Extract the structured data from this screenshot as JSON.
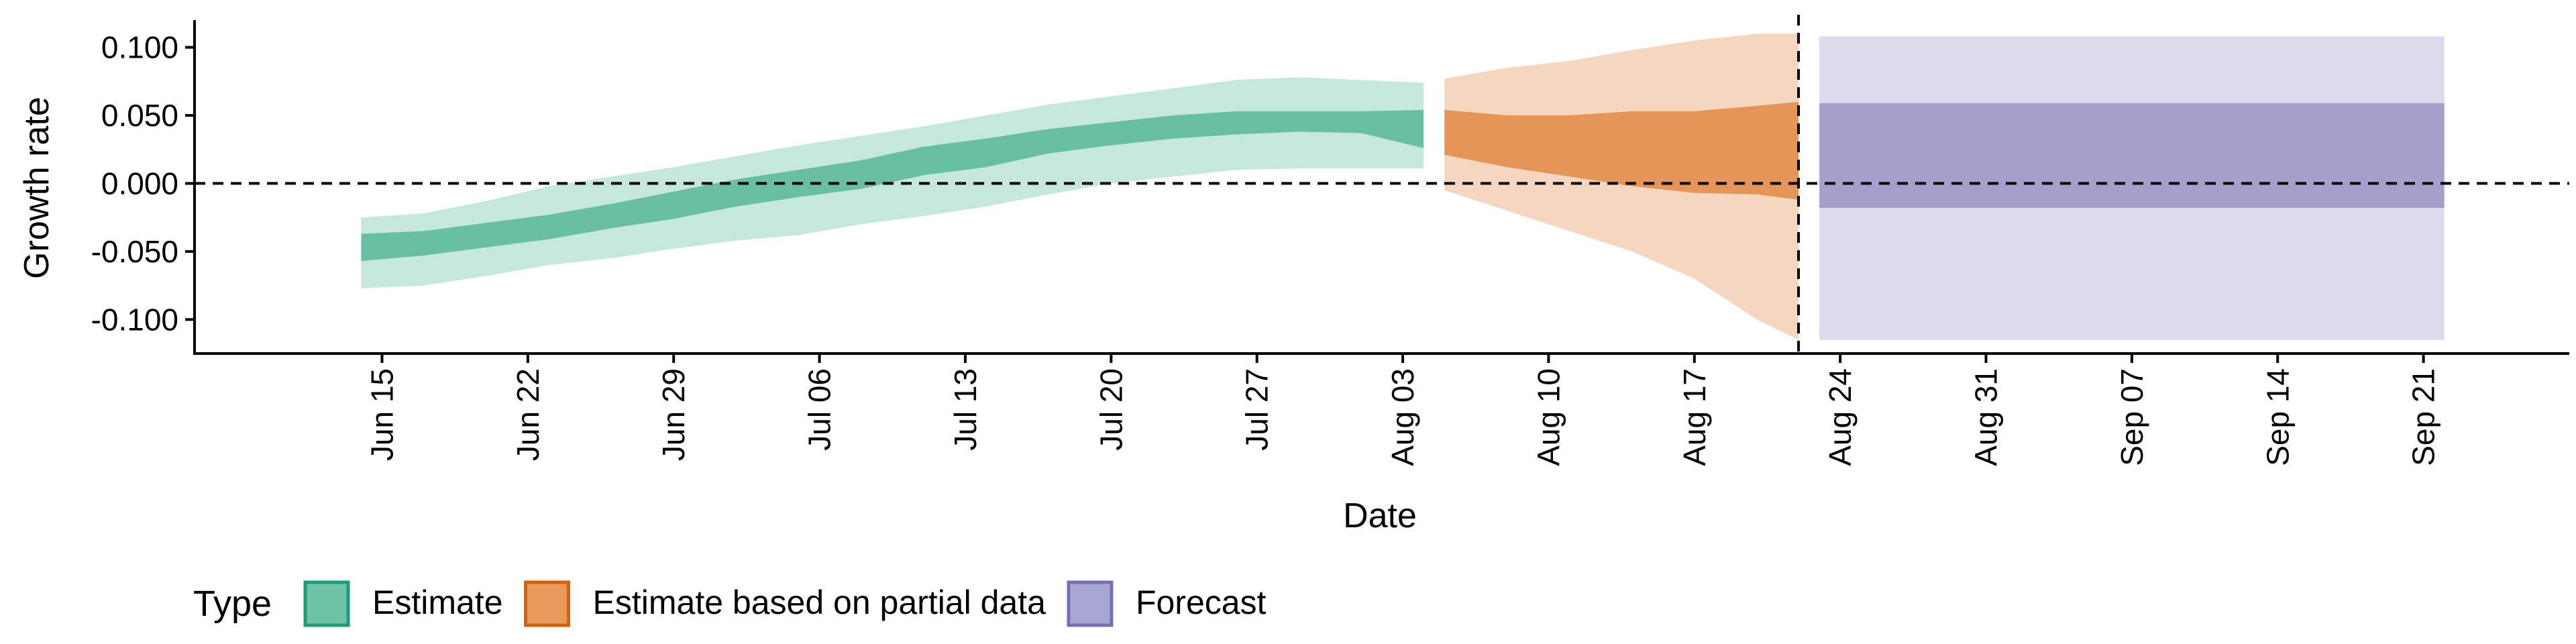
{
  "chart_data": {
    "type": "area",
    "title": "",
    "xlabel": "Date",
    "ylabel": "Growth rate",
    "ylim": [
      -0.125,
      0.12
    ],
    "xlim": [
      "2020-06-06",
      "2020-09-28"
    ],
    "x_ticks": [
      {
        "date": "2020-06-15",
        "label": "Jun 15"
      },
      {
        "date": "2020-06-22",
        "label": "Jun 22"
      },
      {
        "date": "2020-06-29",
        "label": "Jun 29"
      },
      {
        "date": "2020-07-06",
        "label": "Jul 06"
      },
      {
        "date": "2020-07-13",
        "label": "Jul 13"
      },
      {
        "date": "2020-07-20",
        "label": "Jul 20"
      },
      {
        "date": "2020-07-27",
        "label": "Jul 27"
      },
      {
        "date": "2020-08-03",
        "label": "Aug 03"
      },
      {
        "date": "2020-08-10",
        "label": "Aug 10"
      },
      {
        "date": "2020-08-17",
        "label": "Aug 17"
      },
      {
        "date": "2020-08-24",
        "label": "Aug 24"
      },
      {
        "date": "2020-08-31",
        "label": "Aug 31"
      },
      {
        "date": "2020-09-07",
        "label": "Sep 07"
      },
      {
        "date": "2020-09-14",
        "label": "Sep 14"
      },
      {
        "date": "2020-09-21",
        "label": "Sep 21"
      }
    ],
    "y_ticks": [
      {
        "value": 0.1,
        "label": "0.100"
      },
      {
        "value": 0.05,
        "label": "0.050"
      },
      {
        "value": 0.0,
        "label": "0.000"
      },
      {
        "value": -0.05,
        "label": "-0.050"
      },
      {
        "value": -0.1,
        "label": "-0.100"
      }
    ],
    "hline_y": 0,
    "vline_x": "2020-08-22",
    "grid": false,
    "legend": {
      "title": "Type",
      "position": "bottom-left",
      "entries": [
        {
          "label": "Estimate",
          "fill": "#6ec2a5",
          "stroke": "#1b9e77"
        },
        {
          "label": "Estimate based on partial data",
          "fill": "#e89a5e",
          "stroke": "#d95f02"
        },
        {
          "label": "Forecast",
          "fill": "#a8a6d3",
          "stroke": "#7570b3"
        }
      ]
    },
    "series": [
      {
        "type": "Estimate",
        "color": "#1b9e77",
        "x": [
          "2020-06-14",
          "2020-06-17",
          "2020-06-20",
          "2020-06-23",
          "2020-06-26",
          "2020-06-29",
          "2020-07-02",
          "2020-07-05",
          "2020-07-08",
          "2020-07-11",
          "2020-07-14",
          "2020-07-17",
          "2020-07-20",
          "2020-07-23",
          "2020-07-26",
          "2020-07-29",
          "2020-08-01",
          "2020-08-04"
        ],
        "lower90": [
          -0.077,
          -0.075,
          -0.068,
          -0.06,
          -0.055,
          -0.048,
          -0.042,
          -0.038,
          -0.03,
          -0.024,
          -0.017,
          -0.008,
          0.0,
          0.005,
          0.01,
          0.011,
          0.011,
          0.011
        ],
        "upper90": [
          -0.025,
          -0.022,
          -0.013,
          -0.002,
          0.005,
          0.012,
          0.02,
          0.028,
          0.035,
          0.042,
          0.05,
          0.058,
          0.064,
          0.07,
          0.076,
          0.078,
          0.076,
          0.074
        ],
        "lower50": [
          -0.057,
          -0.053,
          -0.047,
          -0.041,
          -0.033,
          -0.026,
          -0.017,
          -0.01,
          -0.004,
          0.006,
          0.012,
          0.022,
          0.028,
          0.033,
          0.036,
          0.038,
          0.037,
          0.026
        ],
        "upper50": [
          -0.037,
          -0.035,
          -0.029,
          -0.023,
          -0.015,
          -0.006,
          0.003,
          0.01,
          0.017,
          0.027,
          0.033,
          0.04,
          0.045,
          0.05,
          0.053,
          0.053,
          0.053,
          0.054
        ]
      },
      {
        "type": "Estimate based on partial data",
        "color": "#d95f02",
        "x": [
          "2020-08-05",
          "2020-08-08",
          "2020-08-11",
          "2020-08-14",
          "2020-08-17",
          "2020-08-20",
          "2020-08-22"
        ],
        "lower90": [
          -0.005,
          -0.02,
          -0.035,
          -0.05,
          -0.07,
          -0.1,
          -0.115
        ],
        "upper90": [
          0.077,
          0.085,
          0.09,
          0.098,
          0.105,
          0.11,
          0.11
        ],
        "lower50": [
          0.021,
          0.012,
          0.005,
          -0.002,
          -0.007,
          -0.008,
          -0.012
        ],
        "upper50": [
          0.054,
          0.05,
          0.05,
          0.053,
          0.053,
          0.057,
          0.06
        ]
      },
      {
        "type": "Forecast",
        "color": "#7570b3",
        "x": [
          "2020-08-23",
          "2020-09-22"
        ],
        "lower90": [
          -0.115,
          -0.115
        ],
        "upper90": [
          0.108,
          0.108
        ],
        "lower50": [
          -0.018,
          -0.018
        ],
        "upper50": [
          0.059,
          0.059
        ]
      }
    ]
  }
}
